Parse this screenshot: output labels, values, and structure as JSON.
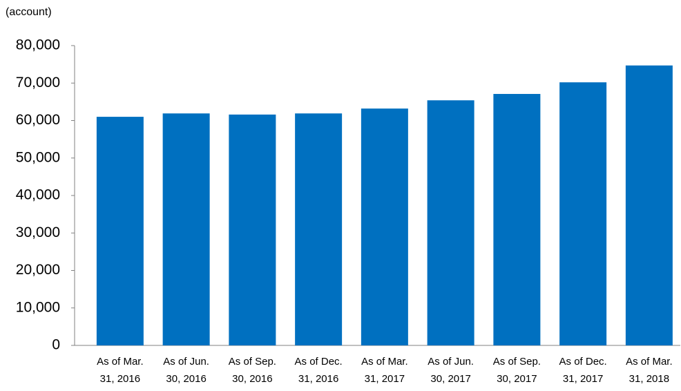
{
  "chart_data": {
    "type": "bar",
    "unit_label": "(account)",
    "categories": [
      [
        "As of Mar.",
        "31, 2016"
      ],
      [
        "As of Jun.",
        "30, 2016"
      ],
      [
        "As of Sep.",
        "30, 2016"
      ],
      [
        "As of Dec.",
        "31, 2016"
      ],
      [
        "As of Mar.",
        "31, 2017"
      ],
      [
        "As of Jun.",
        "30, 2017"
      ],
      [
        "As of Sep.",
        "30, 2017"
      ],
      [
        "As of Dec.",
        "31, 2017"
      ],
      [
        "As of Mar.",
        "31, 2018"
      ]
    ],
    "values": [
      61000,
      61900,
      61600,
      61900,
      63200,
      65400,
      67100,
      70200,
      74700
    ],
    "color": "#0070c0",
    "ylim": [
      0,
      80000
    ],
    "yticks": [
      0,
      {
        "value": 10000,
        "label": "10,000"
      },
      {
        "value": 20000,
        "label": "20,000"
      },
      {
        "value": 30000,
        "label": "30,000"
      },
      {
        "value": 40000,
        "label": "40,000"
      },
      {
        "value": 50000,
        "label": "50,000"
      },
      {
        "value": 60000,
        "label": "60,000"
      },
      {
        "value": 70000,
        "label": "70,000"
      },
      {
        "value": 80000,
        "label": "80,000"
      }
    ],
    "grid": false
  }
}
